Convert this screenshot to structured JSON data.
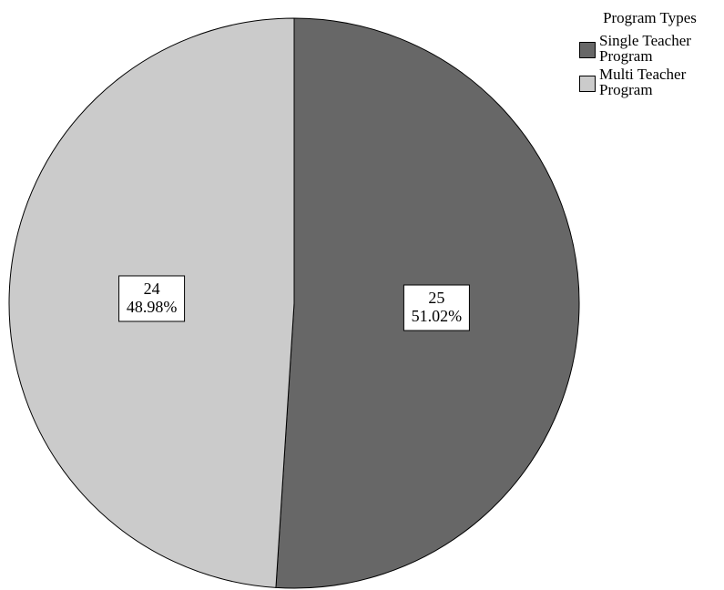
{
  "chart_data": {
    "type": "pie",
    "categories": [
      "Single Teacher Program",
      "Multi Teacher Program"
    ],
    "values": [
      25,
      24
    ],
    "percent_labels": [
      "51.02%",
      "48.98%"
    ],
    "colors": [
      "#676767",
      "#cbcbcb"
    ],
    "legend": {
      "title": "Program Types",
      "placement": "top-right",
      "entries": [
        "Single Teacher Program",
        "Multi Teacher Program"
      ]
    },
    "start_angle": "12 o'clock",
    "direction": "clockwise"
  }
}
